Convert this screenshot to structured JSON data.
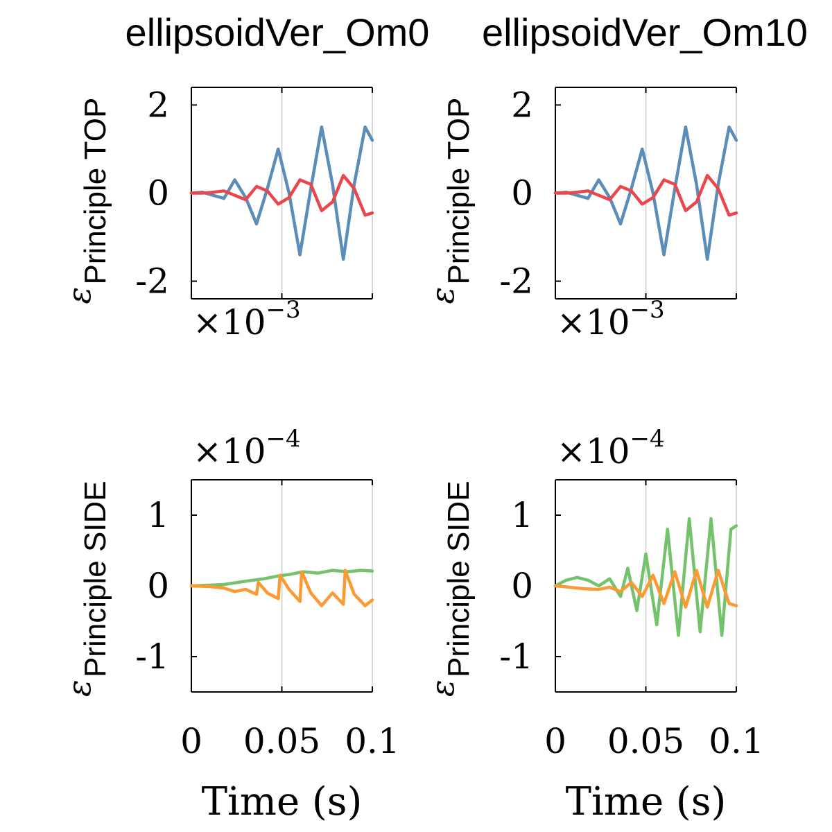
{
  "colors": {
    "blue": "#5b8db8",
    "red": "#e8474c",
    "green": "#74c26c",
    "orange": "#fb9a33"
  },
  "chart_data": [
    {
      "type": "line",
      "title": "ellipsoidVer_Om0",
      "ylabel_symbol": "ε",
      "ylabel": "Principle TOP",
      "xlabel": "",
      "multiplier": {
        "base": "×10",
        "exp": "−3"
      },
      "xlim": [
        0,
        0.1
      ],
      "ylim": [
        -2.4,
        2.4
      ],
      "xticks": [
        0,
        0.05,
        0.1
      ],
      "xtick_labels": [],
      "yticks": [
        -2,
        0,
        2
      ],
      "ytick_labels": [
        "-2",
        "0",
        "2"
      ],
      "grid": "x",
      "series": [
        {
          "color": "blue",
          "x": [
            0,
            0.006,
            0.012,
            0.018,
            0.024,
            0.03,
            0.036,
            0.042,
            0.048,
            0.054,
            0.06,
            0.066,
            0.072,
            0.078,
            0.084,
            0.09,
            0.096,
            0.1
          ],
          "y": [
            0,
            0.02,
            -0.05,
            -0.12,
            0.3,
            -0.1,
            -0.7,
            0.1,
            1.0,
            0.0,
            -1.4,
            0.1,
            1.5,
            0.2,
            -1.5,
            0.2,
            1.5,
            1.2
          ]
        },
        {
          "color": "red",
          "x": [
            0,
            0.006,
            0.012,
            0.018,
            0.024,
            0.03,
            0.036,
            0.042,
            0.048,
            0.054,
            0.06,
            0.066,
            0.072,
            0.078,
            0.084,
            0.09,
            0.096,
            0.1
          ],
          "y": [
            0,
            0,
            0.02,
            0.05,
            -0.05,
            -0.15,
            0.15,
            0.05,
            -0.25,
            -0.1,
            0.3,
            0.2,
            -0.4,
            -0.2,
            0.4,
            0.1,
            -0.5,
            -0.45
          ]
        }
      ]
    },
    {
      "type": "line",
      "title": "ellipsoidVer_Om10",
      "ylabel_symbol": "ε",
      "ylabel": "Principle TOP",
      "xlabel": "",
      "multiplier": {
        "base": "×10",
        "exp": "−3"
      },
      "xlim": [
        0,
        0.1
      ],
      "ylim": [
        -2.4,
        2.4
      ],
      "xticks": [
        0,
        0.05,
        0.1
      ],
      "xtick_labels": [],
      "yticks": [
        -2,
        0,
        2
      ],
      "ytick_labels": [
        "-2",
        "0",
        "2"
      ],
      "grid": "x",
      "series": [
        {
          "color": "blue",
          "x": [
            0,
            0.006,
            0.012,
            0.018,
            0.024,
            0.03,
            0.036,
            0.042,
            0.048,
            0.054,
            0.06,
            0.066,
            0.072,
            0.078,
            0.084,
            0.09,
            0.096,
            0.1
          ],
          "y": [
            0,
            0.02,
            -0.05,
            -0.12,
            0.3,
            -0.1,
            -0.7,
            0.1,
            1.0,
            0.0,
            -1.4,
            0.1,
            1.5,
            0.2,
            -1.5,
            0.2,
            1.5,
            1.2
          ]
        },
        {
          "color": "red",
          "x": [
            0,
            0.006,
            0.012,
            0.018,
            0.024,
            0.03,
            0.036,
            0.042,
            0.048,
            0.054,
            0.06,
            0.066,
            0.072,
            0.078,
            0.084,
            0.09,
            0.096,
            0.1
          ],
          "y": [
            0,
            0,
            0.02,
            0.05,
            -0.05,
            -0.15,
            0.15,
            0.05,
            -0.25,
            -0.1,
            0.3,
            0.2,
            -0.4,
            -0.2,
            0.4,
            0.1,
            -0.5,
            -0.45
          ]
        }
      ]
    },
    {
      "type": "line",
      "title": "",
      "ylabel_symbol": "ε",
      "ylabel": "Principle SIDE",
      "xlabel": "Time (s)",
      "multiplier": {
        "base": "×10",
        "exp": "−4"
      },
      "xlim": [
        0,
        0.1
      ],
      "ylim": [
        -1.5,
        1.5
      ],
      "xticks": [
        0,
        0.05,
        0.1
      ],
      "xtick_labels": [
        "0",
        "0.05",
        "0.1"
      ],
      "yticks": [
        -1,
        0,
        1
      ],
      "ytick_labels": [
        "-1",
        "0",
        "1"
      ],
      "grid": "x",
      "series": [
        {
          "color": "green",
          "x": [
            0,
            0.01,
            0.018,
            0.026,
            0.034,
            0.04,
            0.048,
            0.054,
            0.062,
            0.07,
            0.078,
            0.086,
            0.094,
            0.1
          ],
          "y": [
            0,
            0.01,
            0.02,
            0.05,
            0.08,
            0.1,
            0.14,
            0.16,
            0.2,
            0.18,
            0.22,
            0.2,
            0.22,
            0.21
          ]
        },
        {
          "color": "orange",
          "x": [
            0,
            0.01,
            0.018,
            0.024,
            0.03,
            0.036,
            0.037,
            0.042,
            0.048,
            0.049,
            0.054,
            0.06,
            0.061,
            0.066,
            0.072,
            0.078,
            0.084,
            0.085,
            0.09,
            0.096,
            0.1
          ],
          "y": [
            0,
            -0.01,
            -0.03,
            -0.08,
            -0.05,
            -0.12,
            0.05,
            -0.1,
            -0.18,
            0.15,
            -0.05,
            -0.22,
            0.2,
            -0.1,
            -0.28,
            -0.1,
            -0.26,
            0.22,
            -0.12,
            -0.28,
            -0.2
          ]
        }
      ]
    },
    {
      "type": "line",
      "title": "",
      "ylabel_symbol": "ε",
      "ylabel": "Principle SIDE",
      "xlabel": "Time (s)",
      "multiplier": {
        "base": "×10",
        "exp": "−4"
      },
      "xlim": [
        0,
        0.1
      ],
      "ylim": [
        -1.5,
        1.5
      ],
      "xticks": [
        0,
        0.05,
        0.1
      ],
      "xtick_labels": [
        "0",
        "0.05",
        "0.1"
      ],
      "yticks": [
        -1,
        0,
        1
      ],
      "ytick_labels": [
        "-1",
        "0",
        "1"
      ],
      "grid": "x",
      "series": [
        {
          "color": "green",
          "x": [
            0,
            0.006,
            0.012,
            0.018,
            0.024,
            0.03,
            0.036,
            0.04,
            0.045,
            0.05,
            0.056,
            0.062,
            0.068,
            0.074,
            0.08,
            0.086,
            0.092,
            0.097,
            0.1
          ],
          "y": [
            0,
            0.08,
            0.12,
            0.08,
            0.0,
            0.1,
            -0.15,
            0.25,
            -0.35,
            0.45,
            -0.55,
            0.8,
            -0.7,
            0.95,
            -0.65,
            0.95,
            -0.7,
            0.8,
            0.85
          ]
        },
        {
          "color": "orange",
          "x": [
            0,
            0.008,
            0.016,
            0.024,
            0.03,
            0.036,
            0.042,
            0.048,
            0.054,
            0.06,
            0.066,
            0.072,
            0.078,
            0.084,
            0.09,
            0.096,
            0.1
          ],
          "y": [
            0,
            -0.02,
            -0.04,
            -0.05,
            -0.02,
            -0.08,
            0.05,
            -0.15,
            0.15,
            -0.25,
            0.2,
            -0.3,
            0.22,
            -0.3,
            0.22,
            -0.25,
            -0.28
          ]
        }
      ]
    }
  ]
}
